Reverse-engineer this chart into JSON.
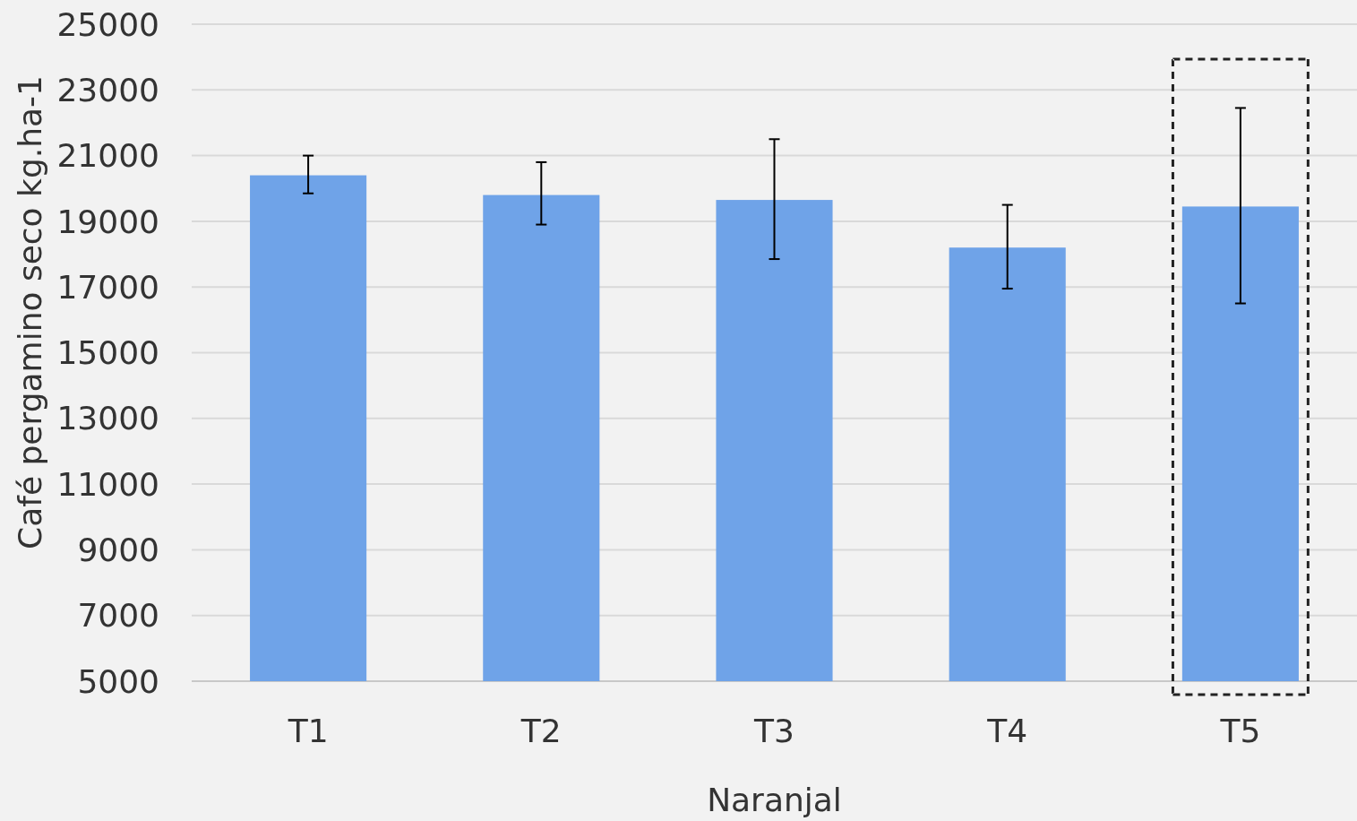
{
  "chart_data": {
    "type": "bar",
    "xlabel": "Naranjal",
    "ylabel": "Café pergamino seco kg.ha-1",
    "categories": [
      "T1",
      "T2",
      "T3",
      "T4",
      "T5"
    ],
    "values": [
      20400,
      19800,
      19650,
      18200,
      19450
    ],
    "errors": [
      [
        19850,
        21000
      ],
      [
        18900,
        20800
      ],
      [
        17850,
        21500
      ],
      [
        16950,
        19500
      ],
      [
        16500,
        22450
      ]
    ],
    "color": "#6fa3e8",
    "ylim": [
      5000,
      25000
    ],
    "yticks": [
      5000,
      7000,
      9000,
      11000,
      13000,
      15000,
      17000,
      19000,
      21000,
      23000,
      25000
    ],
    "grid": "y"
  }
}
